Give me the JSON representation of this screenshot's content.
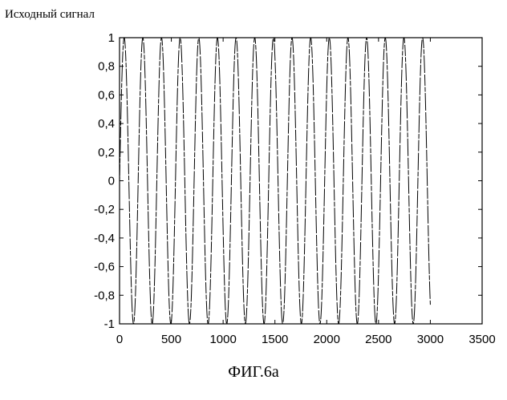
{
  "chart_data": {
    "type": "line",
    "title": "Исходный сигнал",
    "caption": "ФИГ.6а",
    "xlabel": "",
    "ylabel": "",
    "xlim": [
      0,
      3500
    ],
    "ylim": [
      -1,
      1
    ],
    "x_ticks": [
      0,
      500,
      1000,
      1500,
      2000,
      2500,
      3000,
      3500
    ],
    "x_tick_labels": [
      "0",
      "500",
      "1000",
      "1500",
      "2000",
      "2500",
      "3000",
      "3500"
    ],
    "y_ticks": [
      1,
      0.8,
      0.6,
      0.4,
      0.2,
      0,
      -0.2,
      -0.4,
      -0.6,
      -0.8,
      -1
    ],
    "y_tick_labels": [
      "1",
      "0,8",
      "0,6",
      "0,4",
      "0,2",
      "0",
      "-0,2",
      "-0,4",
      "-0,6",
      "-0,8",
      "-1"
    ],
    "grid": false,
    "series": [
      {
        "function": "sine",
        "amplitude": 1,
        "period": 180,
        "x_start": -50,
        "x_end": 3000,
        "color": "#000000"
      }
    ]
  }
}
